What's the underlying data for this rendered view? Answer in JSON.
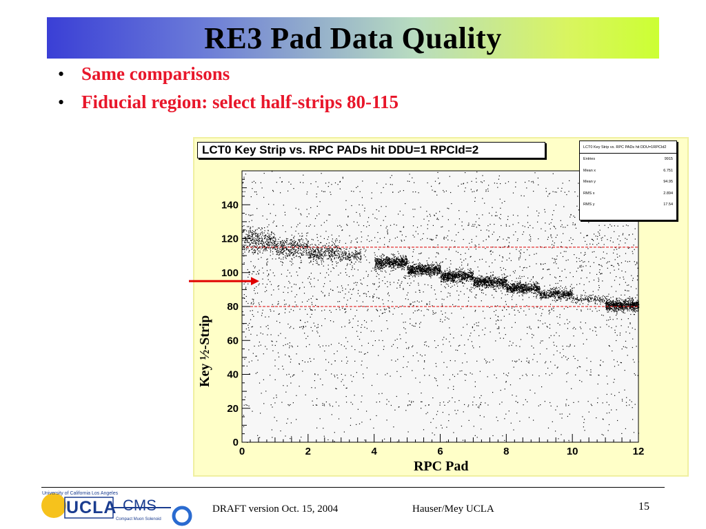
{
  "slide": {
    "title": "RE3 Pad Data Quality",
    "bullets": [
      {
        "symbol": "•",
        "text": "Same comparisons"
      },
      {
        "symbol": "•",
        "text": "Fiducial region: select half-strips 80-115"
      }
    ],
    "colors": {
      "bullet_text": "#e8162a",
      "title_gradient_start": "#3a3fd6",
      "title_gradient_end": "#ccff33",
      "frame": "#ffffc8"
    }
  },
  "chart_data": {
    "type": "scatter",
    "title": "LCT0 Key Strip vs. RPC PADs hit DDU=1 RPCId=2",
    "xlabel": "RPC Pad",
    "ylabel": "Key ½-Strip",
    "xlim": [
      0,
      12
    ],
    "ylim": [
      0,
      160
    ],
    "xticks": [
      "0",
      "2",
      "4",
      "6",
      "8",
      "10",
      "12"
    ],
    "yticks": [
      "0",
      "20",
      "40",
      "60",
      "80",
      "100",
      "120",
      "140"
    ],
    "reference_lines": [
      {
        "y": 115,
        "style": "dashed",
        "color": "#e00000"
      },
      {
        "y": 80,
        "style": "dashed",
        "color": "#e00000"
      }
    ],
    "arrow_marker": {
      "y": 95,
      "color": "#e00000"
    },
    "stats": {
      "header": "LCT0 Key Strip vs. RPC PADs hit DDU=1RPCId2",
      "rows": [
        {
          "label": "Entries",
          "value": "9915"
        },
        {
          "label": "Mean x",
          "value": "6.751"
        },
        {
          "label": "Mean y",
          "value": "94.95"
        },
        {
          "label": "RMS x",
          "value": "2.894"
        },
        {
          "label": "RMS y",
          "value": "17.54"
        }
      ]
    },
    "dense_bands": [
      {
        "x0": 0.0,
        "x1": 1.0,
        "y": 119,
        "sigma": 3.5,
        "n": 360
      },
      {
        "x0": 1.0,
        "x1": 2.0,
        "y": 115,
        "sigma": 3.0,
        "n": 320
      },
      {
        "x0": 2.0,
        "x1": 3.0,
        "y": 112,
        "sigma": 2.6,
        "n": 320
      },
      {
        "x0": 3.0,
        "x1": 3.6,
        "y": 110,
        "sigma": 2.0,
        "n": 120
      },
      {
        "x0": 4.0,
        "x1": 5.0,
        "y": 106,
        "sigma": 1.7,
        "n": 600
      },
      {
        "x0": 5.0,
        "x1": 6.0,
        "y": 102,
        "sigma": 1.7,
        "n": 600
      },
      {
        "x0": 6.0,
        "x1": 7.0,
        "y": 98,
        "sigma": 1.7,
        "n": 600
      },
      {
        "x0": 7.0,
        "x1": 8.0,
        "y": 94.5,
        "sigma": 1.7,
        "n": 600
      },
      {
        "x0": 8.0,
        "x1": 9.0,
        "y": 91,
        "sigma": 1.6,
        "n": 550
      },
      {
        "x0": 9.0,
        "x1": 10.0,
        "y": 87.5,
        "sigma": 1.6,
        "n": 420
      },
      {
        "x0": 10.0,
        "x1": 11.0,
        "y": 84.5,
        "sigma": 1.2,
        "n": 120
      },
      {
        "x0": 11.0,
        "x1": 12.0,
        "y": 81,
        "sigma": 1.6,
        "n": 700
      }
    ],
    "horizontal_streaks": [
      22,
      24,
      40,
      48,
      57,
      68,
      78,
      120,
      128,
      134,
      148,
      153
    ],
    "scatter_background_points": 2200
  },
  "footer": {
    "draft": "DRAFT version Oct. 15, 2004",
    "authors": "Hauser/Mey UCLA",
    "page": "15",
    "logo_university": "University of California Los Angeles",
    "logo_ucla": "UCLA",
    "logo_cms": "CMS",
    "logo_cms_sub": "Compact Muon Solenoid"
  }
}
